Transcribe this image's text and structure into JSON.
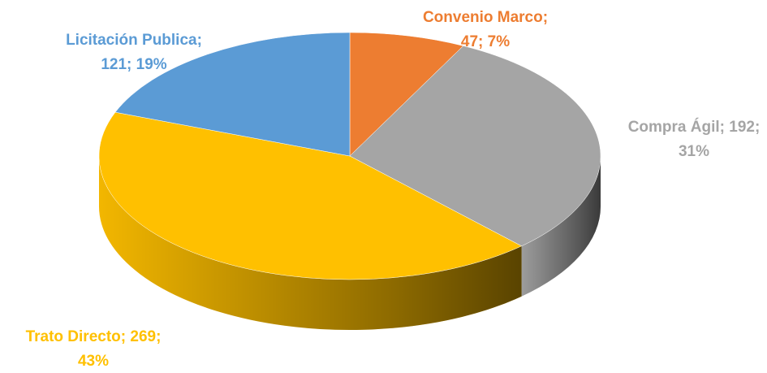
{
  "chart_data": {
    "type": "pie3d",
    "values": [
      47,
      192,
      269,
      121
    ],
    "value_labels": [
      [
        "Convenio Marco;",
        "47; 7%"
      ],
      [
        "Compra Ágil; 192;",
        "31%"
      ],
      [
        "Trato Directo; 269;",
        "43%"
      ],
      [
        "Licitación Publica;",
        "121; 19%"
      ]
    ],
    "colors": [
      "#ED7D31",
      "#A5A5A5",
      "#FFC000",
      "#5B9BD5"
    ]
  }
}
